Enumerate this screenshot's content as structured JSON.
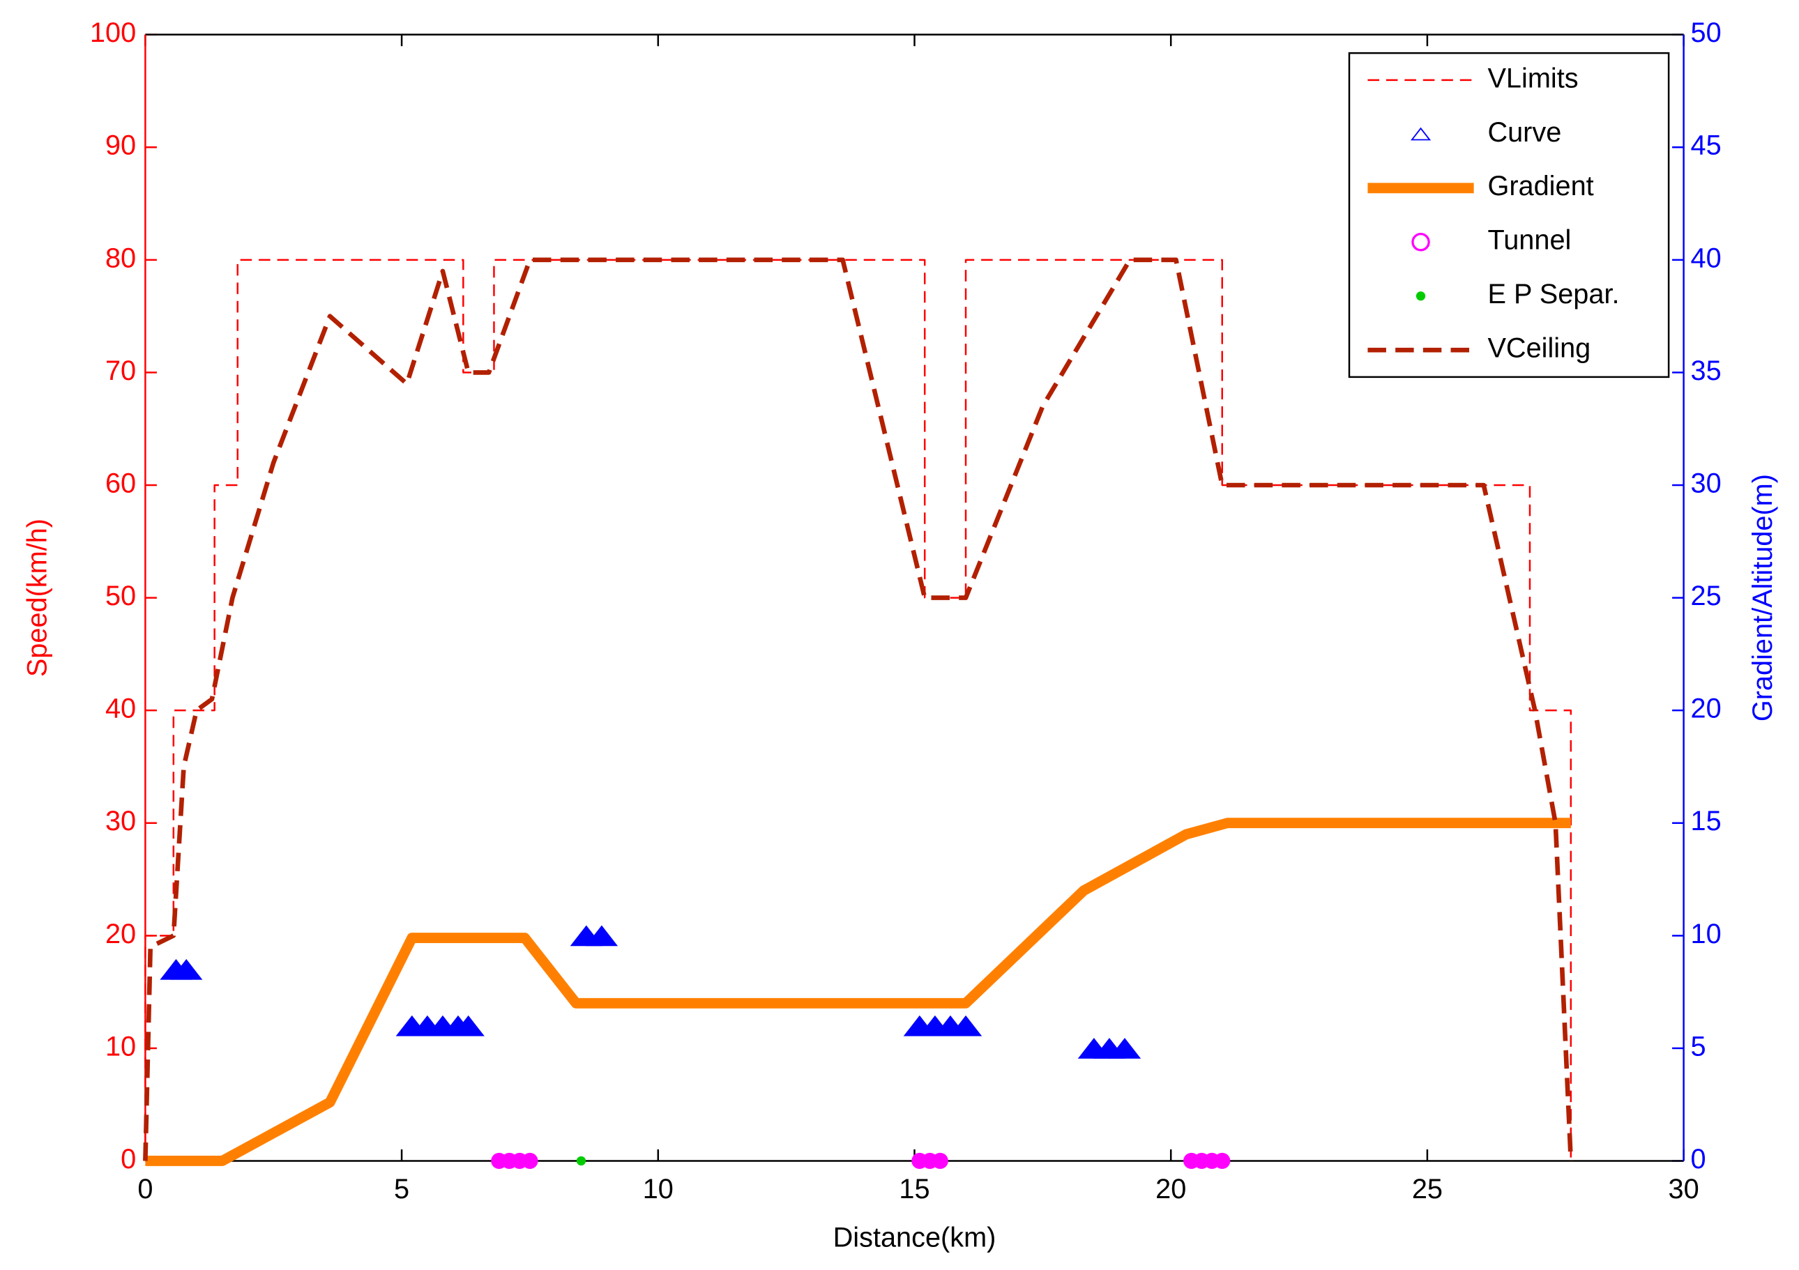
{
  "chart_data": {
    "type": "line",
    "xlabel": "Distance(km)",
    "ylabel": "Speed(km/h)",
    "y2label": "Gradient/Altitude(m)",
    "xlim": [
      0,
      30
    ],
    "xticks": [
      0,
      5,
      10,
      15,
      20,
      25,
      30
    ],
    "ylim": [
      0,
      100
    ],
    "yticks": [
      0,
      10,
      20,
      30,
      40,
      50,
      60,
      70,
      80,
      90,
      100
    ],
    "y2lim": [
      0,
      50
    ],
    "y2ticks": [
      0,
      5,
      10,
      15,
      20,
      25,
      30,
      35,
      40,
      45,
      50
    ],
    "legend": "upper right",
    "series": [
      {
        "name": "VLimits",
        "color": "#ff0000",
        "line": "dashed",
        "width": 1.5,
        "x": [
          0,
          0,
          0.55,
          0.55,
          1.35,
          1.35,
          1.8,
          1.8,
          6.2,
          6.2,
          6.8,
          6.8,
          15.2,
          15.2,
          16,
          16,
          21,
          21,
          27,
          27,
          27.8,
          27.8
        ],
        "values": [
          0,
          20,
          20,
          40,
          40,
          60,
          60,
          80,
          80,
          70,
          70,
          80,
          80,
          50,
          50,
          80,
          80,
          60,
          60,
          40,
          40,
          0
        ]
      },
      {
        "name": "Curve",
        "color": "#0000ff",
        "marker": "triangle",
        "x": [
          0.6,
          0.8,
          5.2,
          5.5,
          5.8,
          6.1,
          6.3,
          8.6,
          8.9,
          15.1,
          15.4,
          15.7,
          16,
          18.5,
          18.8,
          19.1
        ],
        "values": [
          17,
          17,
          12,
          12,
          12,
          12,
          12,
          20,
          20,
          12,
          12,
          12,
          12,
          10,
          10,
          10
        ]
      },
      {
        "name": "Gradient",
        "color": "#ff8000",
        "line": "solid",
        "width": 9,
        "axis": "y2",
        "x": [
          0,
          1.5,
          3.6,
          5.2,
          7.4,
          8.4,
          16,
          18.3,
          20.3,
          21.1,
          27.8
        ],
        "values": [
          0,
          0,
          2.6,
          9.9,
          9.9,
          7,
          7,
          12,
          14.5,
          15,
          15
        ]
      },
      {
        "name": "Tunnel",
        "color": "#ff00ff",
        "marker": "circle",
        "x": [
          6.9,
          7.1,
          7.3,
          7.5,
          15.1,
          15.3,
          15.5,
          20.4,
          20.6,
          20.8,
          21
        ],
        "values": [
          0,
          0,
          0,
          0,
          0,
          0,
          0,
          0,
          0,
          0,
          0
        ]
      },
      {
        "name": "E P Separ.",
        "color": "#00cc00",
        "marker": "dot",
        "x": [
          8.5
        ],
        "values": [
          0
        ]
      },
      {
        "name": "VCeiling",
        "color": "#b22000",
        "line": "dashed",
        "width": 4,
        "x": [
          0,
          0.1,
          0.55,
          0.75,
          1.0,
          1.3,
          1.7,
          2.5,
          3.6,
          5.1,
          5.8,
          6.3,
          6.7,
          7.5,
          13.6,
          15.2,
          16,
          17.5,
          19.2,
          20.1,
          21,
          26.1,
          26.6,
          27.1,
          27.5,
          27.7,
          27.8
        ],
        "values": [
          0,
          19,
          20,
          35,
          40,
          41,
          50,
          62,
          75,
          69,
          79,
          70,
          70,
          80,
          80,
          50,
          50,
          67,
          80,
          80,
          60,
          60,
          50,
          40,
          30,
          10,
          0
        ]
      }
    ]
  }
}
